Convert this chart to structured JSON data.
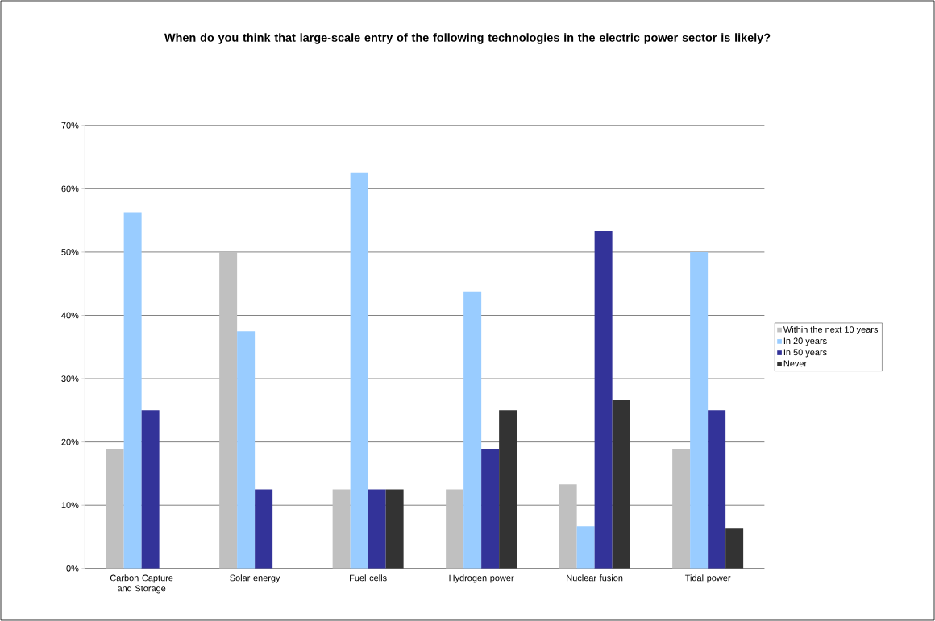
{
  "chart_data": {
    "type": "bar",
    "title": "When do you think that large-scale entry of the following technologies in the electric power sector is likely?",
    "categories": [
      "Carbon Capture and Storage",
      "Solar energy",
      "Fuel cells",
      "Hydrogen power",
      "Nuclear fusion",
      "Tidal power"
    ],
    "series": [
      {
        "name": "Within the next 10 years",
        "color": "#c0c0c0",
        "values": [
          18.8,
          50,
          12.5,
          12.5,
          13.3,
          18.8
        ]
      },
      {
        "name": "In 20 years",
        "color": "#99ccff",
        "values": [
          56.3,
          37.5,
          62.5,
          43.8,
          6.7,
          50
        ]
      },
      {
        "name": "In 50 years",
        "color": "#333399",
        "values": [
          25,
          12.5,
          12.5,
          18.8,
          53.3,
          25
        ]
      },
      {
        "name": "Never",
        "color": "#333333",
        "values": [
          0,
          0,
          12.5,
          25,
          26.7,
          6.3
        ]
      }
    ],
    "ylim": [
      0,
      70
    ],
    "yticks": [
      {
        "value": 0,
        "label": "0%"
      },
      {
        "value": 10,
        "label": "10%"
      },
      {
        "value": 20,
        "label": "20%"
      },
      {
        "value": 30,
        "label": "30%"
      },
      {
        "value": 40,
        "label": "40%"
      },
      {
        "value": 50,
        "label": "50%"
      },
      {
        "value": 60,
        "label": "60%"
      },
      {
        "value": 70,
        "label": "70%"
      }
    ],
    "grid": "y",
    "legend": "right"
  }
}
